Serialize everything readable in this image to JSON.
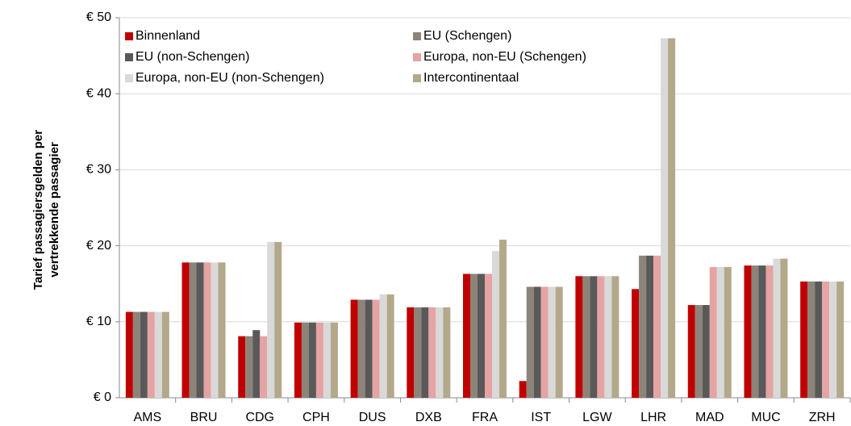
{
  "chart_data": {
    "type": "bar",
    "y_label": [
      "Tarief passagiersgelden per",
      "vertrekkende passagier"
    ],
    "categories": [
      "AMS",
      "BRU",
      "CDG",
      "CPH",
      "DUS",
      "DXB",
      "FRA",
      "IST",
      "LGW",
      "LHR",
      "MAD",
      "MUC",
      "ZRH"
    ],
    "series": [
      {
        "name": "Binnenland",
        "color": "#c00000",
        "values": [
          11.3,
          17.8,
          8.1,
          9.9,
          12.9,
          11.9,
          16.3,
          2.2,
          16.0,
          14.3,
          12.2,
          17.4,
          15.3
        ]
      },
      {
        "name": "EU (Schengen)",
        "color": "#8c8479",
        "values": [
          11.3,
          17.8,
          8.1,
          9.9,
          12.9,
          11.9,
          16.3,
          14.6,
          16.0,
          18.7,
          12.2,
          17.4,
          15.3
        ]
      },
      {
        "name": "EU (non-Schengen)",
        "color": "#595959",
        "values": [
          11.3,
          17.8,
          8.9,
          9.9,
          12.9,
          11.9,
          16.3,
          14.6,
          16.0,
          18.7,
          12.2,
          17.4,
          15.3
        ]
      },
      {
        "name": "Europa, non-EU (Schengen)",
        "color": "#e6a3a3",
        "values": [
          11.3,
          17.8,
          8.1,
          9.9,
          12.9,
          11.9,
          16.3,
          14.6,
          16.0,
          18.7,
          17.2,
          17.4,
          15.3
        ]
      },
      {
        "name": "Europa, non-EU (non-Schengen)",
        "color": "#d9d9d9",
        "values": [
          11.3,
          17.8,
          20.5,
          9.9,
          13.6,
          11.9,
          19.3,
          14.6,
          16.0,
          47.3,
          17.2,
          18.3,
          15.3
        ]
      },
      {
        "name": "Intercontinentaal",
        "color": "#b3a98a",
        "values": [
          11.3,
          17.8,
          20.5,
          9.9,
          13.6,
          11.9,
          20.8,
          14.6,
          16.0,
          47.3,
          17.2,
          18.3,
          15.3
        ]
      }
    ],
    "ylim": [
      0,
      50
    ],
    "yticks": [
      {
        "value": 0,
        "label": "€ 0"
      },
      {
        "value": 10,
        "label": "€ 10"
      },
      {
        "value": 20,
        "label": "€ 20"
      },
      {
        "value": 30,
        "label": "€ 30"
      },
      {
        "value": 40,
        "label": "€ 40"
      },
      {
        "value": 50,
        "label": "€ 50"
      }
    ],
    "grid": true,
    "legend": "top"
  }
}
